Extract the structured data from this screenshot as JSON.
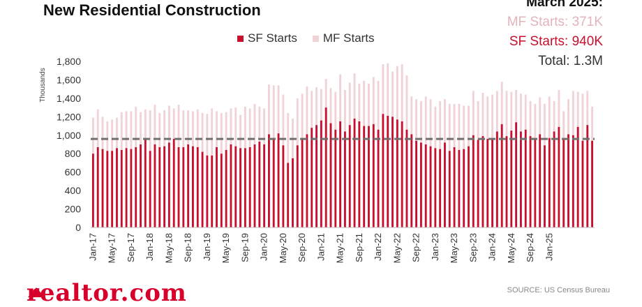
{
  "title": "New Residential Construction",
  "summary": {
    "heading": "March 2025:",
    "mf_label": "MF Starts: 371K",
    "sf_label": "SF Starts:  940K",
    "total_label": "Total:  1.3M"
  },
  "source": "SOURCE: US Census Bureau",
  "logo": "realtor.com",
  "colors": {
    "sf": "#c8102e",
    "mf": "#f0d3d6",
    "avg_line": "#707070"
  },
  "chart_data": {
    "type": "bar",
    "stacked": true,
    "ylabel": "Thousands",
    "ylim": [
      0,
      1800
    ],
    "yticks": [
      0,
      200,
      400,
      600,
      800,
      1000,
      1200,
      1400,
      1600,
      1800
    ],
    "ytick_labels": [
      "0",
      "200",
      "400",
      "600",
      "800",
      "1,000",
      "1,200",
      "1,400",
      "1,600",
      "1,800"
    ],
    "reference_line": {
      "value": 960,
      "style": "dashed"
    },
    "xtick_labels": [
      "Jan-17",
      "May-17",
      "Sep-17",
      "Jan-18",
      "May-18",
      "Sep-18",
      "Jan-19",
      "May-19",
      "Sep-19",
      "Jan-20",
      "May-20",
      "Sep-20",
      "Jan-21",
      "May-21",
      "Sep-21",
      "Jan-22",
      "May-22",
      "Sep-22",
      "Jan-23",
      "May-23",
      "Sep-23",
      "Jan-24",
      "May-24",
      "Sep-24",
      "Jan-25"
    ],
    "xtick_every": 4,
    "start_month": "Jan-17",
    "series": [
      {
        "name": "SF Starts",
        "values": [
          800,
          870,
          850,
          830,
          830,
          860,
          840,
          860,
          850,
          870,
          900,
          950,
          830,
          900,
          870,
          880,
          920,
          960,
          870,
          870,
          900,
          880,
          870,
          820,
          780,
          780,
          870,
          800,
          840,
          900,
          880,
          860,
          860,
          870,
          900,
          930,
          900,
          1010,
          970,
          1020,
          890,
          700,
          750,
          890,
          960,
          1010,
          1080,
          1110,
          1160,
          1300,
          1130,
          1060,
          1150,
          1040,
          1110,
          1180,
          1150,
          1100,
          1100,
          1120,
          1060,
          1230,
          1210,
          1200,
          1170,
          1150,
          1060,
          1010,
          940,
          920,
          900,
          880,
          860,
          850,
          920,
          830,
          870,
          840,
          850,
          880,
          1000,
          950,
          990,
          960,
          970,
          1040,
          1120,
          990,
          1050,
          1140,
          1040,
          1060,
          990,
          950,
          1010,
          890,
          970,
          1040,
          1090,
          950,
          1010,
          1000,
          1090,
          940,
          1110,
          940
        ],
        "color": "#c8102e"
      },
      {
        "name": "MF Starts",
        "values": [
          390,
          410,
          350,
          320,
          340,
          330,
          410,
          400,
          410,
          440,
          350,
          330,
          440,
          430,
          370,
          390,
          400,
          330,
          460,
          400,
          370,
          380,
          410,
          420,
          450,
          510,
          390,
          440,
          410,
          390,
          420,
          360,
          450,
          420,
          440,
          380,
          390,
          540,
          570,
          520,
          550,
          540,
          430,
          510,
          490,
          520,
          400,
          410,
          340,
          310,
          380,
          410,
          510,
          450,
          460,
          490,
          410,
          490,
          460,
          510,
          530,
          540,
          570,
          490,
          580,
          620,
          590,
          410,
          450,
          450,
          520,
          510,
          450,
          520,
          470,
          510,
          470,
          500,
          470,
          440,
          480,
          420,
          470,
          460,
          470,
          440,
          460,
          490,
          420,
          350,
          410,
          380,
          380,
          390,
          400,
          450,
          450,
          330,
          400,
          310,
          380,
          480,
          380,
          510,
          370,
          370
        ],
        "color": "#f0d3d6"
      }
    ]
  }
}
